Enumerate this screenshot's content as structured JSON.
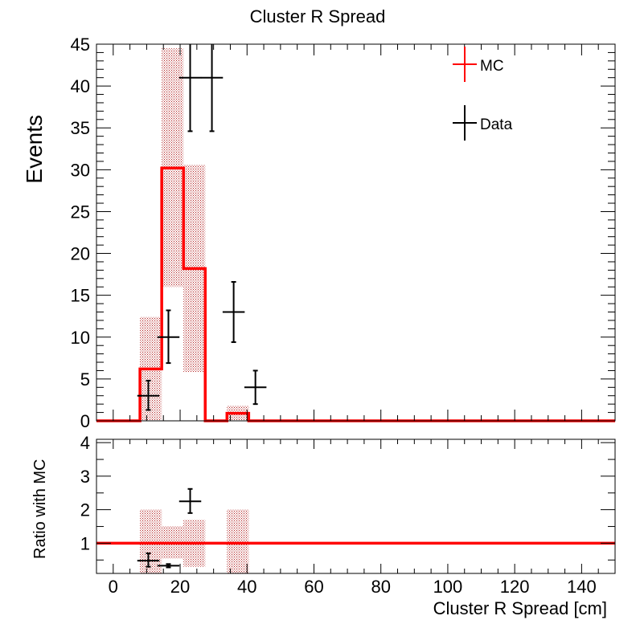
{
  "chart_data": [
    {
      "type": "histogram",
      "title": "Cluster R Spread",
      "ylabel": "Events",
      "xlim": [
        -5,
        150
      ],
      "ylim": [
        0,
        45
      ],
      "yticks": [
        0,
        5,
        10,
        15,
        20,
        25,
        30,
        35,
        40,
        45
      ],
      "bin_edges": [
        -5,
        1.5,
        8,
        14.5,
        21,
        27.5,
        34,
        40.5,
        47,
        53.5,
        60,
        150
      ],
      "legend_position": "top-right",
      "series": [
        {
          "name": "MC",
          "kind": "step",
          "color": "#ff0000",
          "values": [
            0,
            0,
            6.2,
            30.2,
            18.2,
            0,
            0.9,
            0,
            0,
            0,
            0
          ],
          "band_low": [
            0,
            0,
            0,
            16,
            5.8,
            0,
            0,
            0,
            0,
            0,
            0
          ],
          "band_high": [
            0,
            0,
            12.4,
            44.5,
            30.6,
            0,
            1.8,
            0,
            0,
            0,
            0
          ]
        },
        {
          "name": "Data",
          "kind": "errorbar",
          "color": "#000000",
          "points": [
            {
              "x": 10.5,
              "y": 3,
              "xerr": 3.3,
              "ylo": 1.3,
              "yhi": 4.8
            },
            {
              "x": 16.5,
              "y": 10,
              "xerr": 3.3,
              "ylo": 6.9,
              "yhi": 13.2
            },
            {
              "x": 23,
              "y": 41,
              "xerr": 3.3,
              "ylo": 34.6,
              "yhi": 47.5
            },
            {
              "x": 29.5,
              "y": 41,
              "xerr": 3.3,
              "ylo": 34.6,
              "yhi": 47.5
            },
            {
              "x": 36,
              "y": 13,
              "xerr": 3.3,
              "ylo": 9.4,
              "yhi": 16.6
            },
            {
              "x": 42.5,
              "y": 4,
              "xerr": 3.3,
              "ylo": 2.0,
              "yhi": 6.0
            }
          ]
        }
      ]
    },
    {
      "type": "ratio",
      "ylabel": "Ratio with MC",
      "xlabel": "Cluster R Spread [cm]",
      "xlim": [
        -5,
        150
      ],
      "ylim": [
        0.1,
        4.1
      ],
      "yticks": [
        1,
        2,
        3,
        4
      ],
      "xticks": [
        0,
        20,
        40,
        60,
        80,
        100,
        120,
        140
      ],
      "reference_line": 1,
      "bands": [
        {
          "x0": 8,
          "x1": 14.5,
          "low": 0.1,
          "high": 2.0
        },
        {
          "x0": 14.5,
          "x1": 21,
          "low": 0.55,
          "high": 1.5
        },
        {
          "x0": 21,
          "x1": 27.5,
          "low": 0.3,
          "high": 1.7
        },
        {
          "x0": 34,
          "x1": 40.5,
          "low": 0.1,
          "high": 2.0
        }
      ],
      "points": [
        {
          "x": 10.5,
          "y": 0.48,
          "xerr": 3.3,
          "ylo": 0.3,
          "yhi": 0.7
        },
        {
          "x": 16.5,
          "y": 0.33,
          "xerr": 3.3,
          "ylo": 0.28,
          "yhi": 0.38
        },
        {
          "x": 23,
          "y": 2.25,
          "xerr": 3.3,
          "ylo": 1.9,
          "yhi": 2.62
        }
      ]
    }
  ]
}
